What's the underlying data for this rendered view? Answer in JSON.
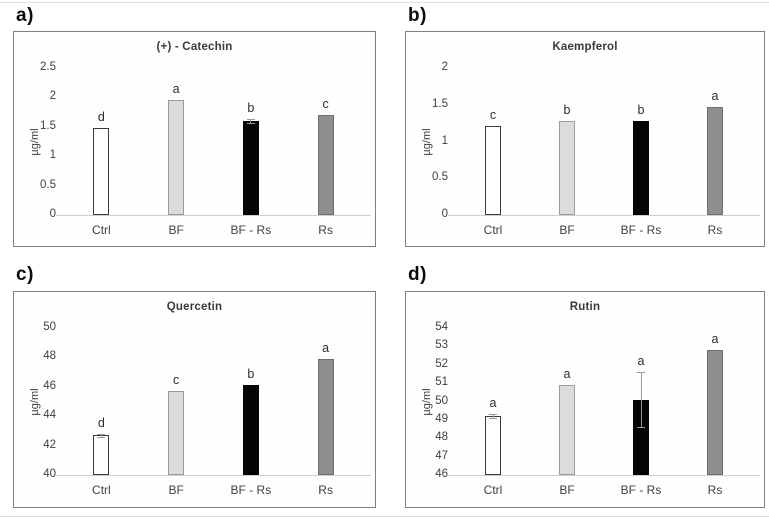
{
  "colors": {
    "panel_border": "#7f7f7f",
    "axis_line": "#cfcfcf",
    "text": "#404040",
    "error_bar": "#9a9a9a"
  },
  "series_styles": [
    {
      "name": "Ctrl",
      "fill": "#ffffff",
      "border": "#3a3a3a"
    },
    {
      "name": "BF",
      "fill": "#dcdcdc",
      "border": "#9a9a9a"
    },
    {
      "name": "BF - Rs",
      "fill": "#050505",
      "border": "#050505"
    },
    {
      "name": "Rs",
      "fill": "#8f8f8f",
      "border": "#6e6e6e"
    }
  ],
  "chart_data": [
    {
      "type": "bar",
      "panel_label": "a)",
      "title": "(+) - Catechin",
      "ylabel": "µg/ml",
      "xlabel": "",
      "categories": [
        "Ctrl",
        "BF",
        "BF - Rs",
        "Rs"
      ],
      "values": [
        1.48,
        1.95,
        1.6,
        1.7
      ],
      "error_bars": [
        0,
        0,
        0.03,
        0
      ],
      "sig_letters": [
        "d",
        "a",
        "b",
        "c"
      ],
      "yticks": [
        0,
        0.5,
        1,
        1.5,
        2,
        2.5
      ],
      "ylim": [
        0,
        2.5
      ],
      "grid": false,
      "legend": false
    },
    {
      "type": "bar",
      "panel_label": "b)",
      "title": "Kaempferol",
      "ylabel": "µg/ml",
      "xlabel": "",
      "categories": [
        "Ctrl",
        "BF",
        "BF - Rs",
        "Rs"
      ],
      "values": [
        1.21,
        1.28,
        1.28,
        1.47
      ],
      "error_bars": [
        0,
        0,
        0,
        0
      ],
      "sig_letters": [
        "c",
        "b",
        "b",
        "a"
      ],
      "yticks": [
        0,
        0.5,
        1,
        1.5,
        2
      ],
      "ylim": [
        0,
        2
      ],
      "grid": false,
      "legend": false
    },
    {
      "type": "bar",
      "panel_label": "c)",
      "title": "Quercetin",
      "ylabel": "µg/ml",
      "xlabel": "",
      "categories": [
        "Ctrl",
        "BF",
        "BF - Rs",
        "Rs"
      ],
      "values": [
        42.7,
        45.7,
        46.1,
        47.9
      ],
      "error_bars": [
        0.1,
        0,
        0,
        0
      ],
      "sig_letters": [
        "d",
        "c",
        "b",
        "a"
      ],
      "yticks": [
        40,
        42,
        44,
        46,
        48,
        50
      ],
      "ylim": [
        40,
        50
      ],
      "grid": false,
      "legend": false
    },
    {
      "type": "bar",
      "panel_label": "d)",
      "title": "Rutin",
      "ylabel": "µg/ml",
      "xlabel": "",
      "categories": [
        "Ctrl",
        "BF",
        "BF - Rs",
        "Rs"
      ],
      "values": [
        49.2,
        50.9,
        50.1,
        52.8
      ],
      "error_bars": [
        0.12,
        0,
        1.5,
        0
      ],
      "sig_letters": [
        "a",
        "a",
        "a",
        "a"
      ],
      "yticks": [
        46,
        47,
        48,
        49,
        50,
        51,
        52,
        53,
        54
      ],
      "ylim": [
        46,
        54
      ],
      "grid": false,
      "legend": false
    }
  ]
}
